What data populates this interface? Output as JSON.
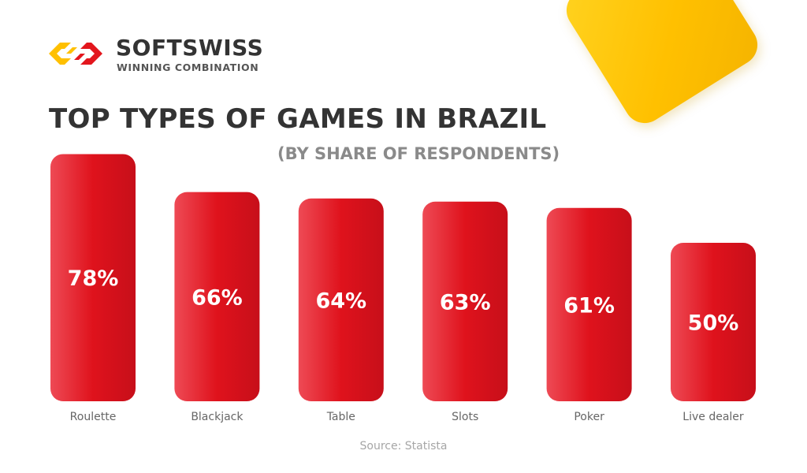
{
  "brand": {
    "name": "SOFTSWISS",
    "tagline": "WINNING COMBINATION",
    "colors": {
      "yellow": "#ffc000",
      "red": "#e3161d",
      "dark": "#333333"
    }
  },
  "chart_data": {
    "type": "bar",
    "title": "TOP TYPES OF GAMES IN BRAZIL",
    "subtitle": "(BY SHARE OF RESPONDENTS)",
    "categories": [
      "Roulette",
      "Blackjack",
      "Table",
      "Slots",
      "Poker",
      "Live dealer"
    ],
    "values": [
      78,
      66,
      64,
      63,
      61,
      50
    ],
    "value_labels": [
      "78%",
      "66%",
      "64%",
      "63%",
      "61%",
      "50%"
    ],
    "unit": "%",
    "bar_color": "#d8121c",
    "grid": false,
    "axes_visible": false,
    "legend": "none"
  },
  "source": "Source: Statista"
}
